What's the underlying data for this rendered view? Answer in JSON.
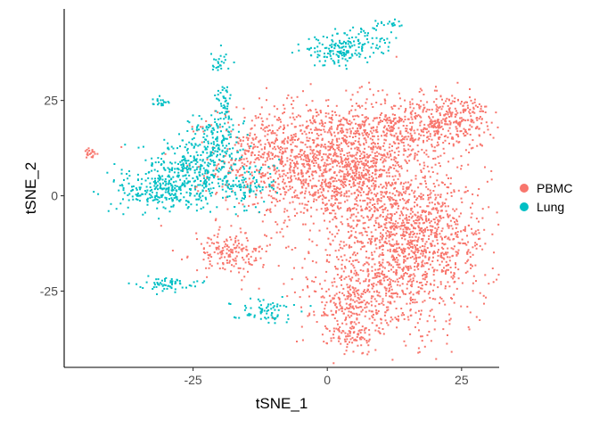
{
  "chart_data": {
    "type": "scatter",
    "xlabel": "tSNE_1",
    "ylabel": "tSNE_2",
    "xlim": [
      -49,
      32
    ],
    "ylim": [
      -45,
      49
    ],
    "x_ticks": [
      -25,
      0,
      25
    ],
    "y_ticks": [
      -25,
      0,
      25
    ],
    "x_tick_labels": [
      "-25",
      "0",
      "25"
    ],
    "y_tick_labels": [
      "-25",
      "0",
      "25"
    ],
    "grid": false,
    "legend_position": "right",
    "series": [
      {
        "name": "PBMC",
        "color": "#F8766D",
        "clusters": [
          {
            "cx": -2,
            "cy": 9,
            "sx": 9,
            "sy": 8,
            "n": 1300
          },
          {
            "cx": 16,
            "cy": 18,
            "sx": 7,
            "sy": 4,
            "n": 450
          },
          {
            "cx": 24,
            "cy": 21,
            "sx": 3,
            "sy": 3,
            "n": 150
          },
          {
            "cx": 7,
            "cy": 5,
            "sx": 4,
            "sy": 5,
            "n": 250
          },
          {
            "cx": 14,
            "cy": -15,
            "sx": 8,
            "sy": 10,
            "n": 1200
          },
          {
            "cx": 5,
            "cy": -28,
            "sx": 4,
            "sy": 4,
            "n": 220
          },
          {
            "cx": 4,
            "cy": -37,
            "sx": 2,
            "sy": 2.5,
            "n": 80
          },
          {
            "cx": 18,
            "cy": -8,
            "sx": 5,
            "sy": 6,
            "n": 250
          },
          {
            "cx": -18,
            "cy": -15,
            "sx": 3.5,
            "sy": 2.5,
            "n": 170
          },
          {
            "cx": -44,
            "cy": 11,
            "sx": 0.6,
            "sy": 1,
            "n": 20
          },
          {
            "cx": -11,
            "cy": 13,
            "sx": 3,
            "sy": 3,
            "n": 60
          }
        ]
      },
      {
        "name": "Lung",
        "color": "#00BFC4",
        "clusters": [
          {
            "cx": -25,
            "cy": 7,
            "sx": 5,
            "sy": 4,
            "n": 350
          },
          {
            "cx": -21,
            "cy": 15,
            "sx": 2.5,
            "sy": 4,
            "n": 130
          },
          {
            "cx": -31,
            "cy": 1,
            "sx": 4,
            "sy": 2.5,
            "n": 200
          },
          {
            "cx": -15,
            "cy": 3,
            "sx": 3,
            "sy": 3,
            "n": 100
          },
          {
            "cx": -19,
            "cy": 24,
            "sx": 0.8,
            "sy": 3,
            "n": 40
          },
          {
            "cx": 2,
            "cy": 38,
            "sx": 3,
            "sy": 2,
            "n": 140
          },
          {
            "cx": 7,
            "cy": 41,
            "sx": 2.5,
            "sy": 2,
            "n": 60
          },
          {
            "cx": -30,
            "cy": -23,
            "sx": 2.5,
            "sy": 0.8,
            "n": 60
          },
          {
            "cx": -12,
            "cy": -30,
            "sx": 3,
            "sy": 1.5,
            "n": 70
          },
          {
            "cx": -31,
            "cy": 25,
            "sx": 0.8,
            "sy": 0.8,
            "n": 20
          },
          {
            "cx": -20,
            "cy": 35,
            "sx": 1,
            "sy": 1.5,
            "n": 25
          },
          {
            "cx": 12,
            "cy": 45,
            "sx": 1.5,
            "sy": 0.6,
            "n": 15
          }
        ]
      }
    ]
  }
}
